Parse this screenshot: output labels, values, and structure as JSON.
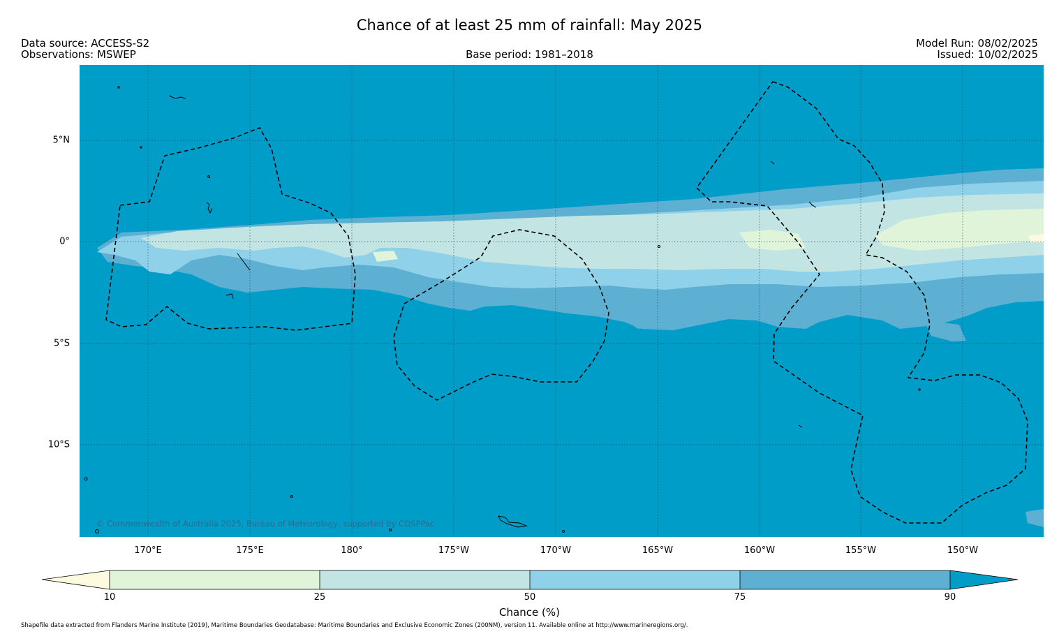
{
  "title": "Chance of at least 25 mm of rainfall: May 2025",
  "header": {
    "data_source": "Data source: ACCESS-S2",
    "observations": "Observations: MSWEP",
    "base_period": "Base period: 1981–2018",
    "model_run": "Model Run: 08/02/2025",
    "issued": "Issued: 10/02/2025"
  },
  "map": {
    "credit": "© Commonwealth of Australia 2025, Bureau of Meteorology, supported by COSPPac",
    "lon_labels": [
      "170°E",
      "175°E",
      "180°",
      "175°W",
      "170°W",
      "165°W",
      "160°W",
      "155°W",
      "150°W"
    ],
    "lat_labels": [
      "5°N",
      "0°",
      "5°S",
      "10°S"
    ],
    "lon_values": [
      170,
      175,
      180,
      -175,
      -170,
      -165,
      -160,
      -155,
      -150
    ],
    "lat_values": [
      5,
      0,
      -5,
      -10
    ],
    "lon_range": [
      166.6,
      -146.0
    ],
    "lat_range": [
      -14.3,
      8.7
    ],
    "colors": {
      "ocean_base": "#009dc9",
      "band_75_90": "#5eb0d3",
      "band_50_75": "#8fd1e8",
      "band_25_50": "#c2e5e3",
      "band_10_25": "#e0f4d9"
    }
  },
  "colorbar": {
    "label": "Chance (%)",
    "ticks": [
      "10",
      "25",
      "50",
      "75",
      "90"
    ],
    "bands": [
      {
        "range": "<10",
        "color": "#fdfae0"
      },
      {
        "range": "10–25",
        "color": "#e0f4d9"
      },
      {
        "range": "25–50",
        "color": "#c2e5e3"
      },
      {
        "range": "50–75",
        "color": "#8fd1e8"
      },
      {
        "range": "75–90",
        "color": "#5eb0d3"
      },
      {
        "range": ">90",
        "color": "#009dc9"
      }
    ]
  },
  "footer": "Shapefile data extracted from Flanders Marine Institute (2019), Maritime Boundaries Geodatabase: Maritime Boundaries and Exclusive Economic Zones (200NM), version 11. Available online at http://www.marineregions.org/."
}
